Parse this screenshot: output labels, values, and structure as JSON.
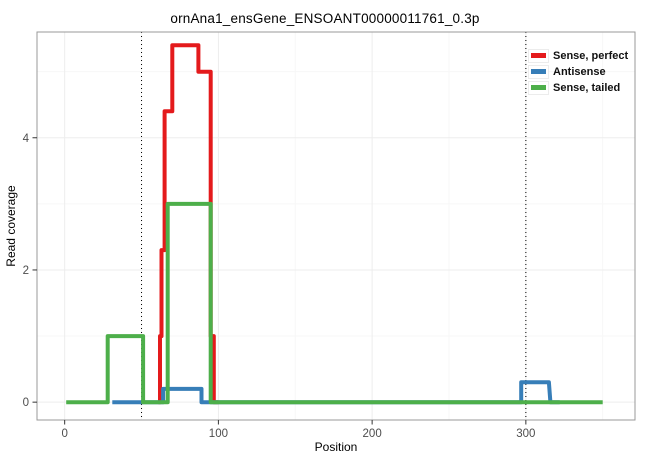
{
  "chart_data": {
    "type": "line",
    "subtype": "step-coverage",
    "title": "ornAna1_ensGene_ENSOANT00000011761_0.3p",
    "xlabel": "Position",
    "ylabel": "Read coverage",
    "xlim": [
      -18,
      371
    ],
    "ylim": [
      -0.27,
      5.6
    ],
    "x_ticks": [
      0,
      100,
      200,
      300
    ],
    "x_tick_labels": [
      "0",
      "100",
      "200",
      "300"
    ],
    "x_minor_gridlines": [
      50,
      150,
      250,
      350
    ],
    "y_ticks": [
      0,
      2,
      4
    ],
    "y_tick_labels": [
      "0",
      "2",
      "4"
    ],
    "y_minor_gridlines": [
      1,
      3,
      5
    ],
    "grid": true,
    "legend_position": "top-right-inside",
    "dotted_vlines": [
      50,
      300
    ],
    "panel_border_color": "#999999",
    "major_grid_color": "#ededed",
    "minor_grid_color": "#f7f7f7",
    "vline_color": "#000000",
    "series": [
      {
        "name": "Sense, perfect",
        "color": "#e41a1c",
        "points": [
          [
            61,
            0
          ],
          [
            62,
            0
          ],
          [
            62,
            1.0
          ],
          [
            63,
            1.0
          ],
          [
            63,
            2.3
          ],
          [
            65,
            2.3
          ],
          [
            65,
            4.4
          ],
          [
            70,
            4.4
          ],
          [
            70,
            5.4
          ],
          [
            87,
            5.4
          ],
          [
            87,
            5.0
          ],
          [
            95,
            5.0
          ],
          [
            95,
            1.0
          ],
          [
            97,
            1.0
          ],
          [
            97,
            0
          ],
          [
            100,
            0
          ]
        ]
      },
      {
        "name": "Antisense",
        "color": "#377eb8",
        "points": [
          [
            31,
            0
          ],
          [
            64,
            0
          ],
          [
            64,
            0.2
          ],
          [
            89,
            0.2
          ],
          [
            89,
            0
          ],
          [
            295,
            0
          ],
          [
            297,
            0
          ],
          [
            297,
            0.3
          ],
          [
            315,
            0.3
          ],
          [
            316,
            0
          ],
          [
            322,
            0
          ]
        ]
      },
      {
        "name": "Sense, tailed",
        "color": "#4daf4a",
        "points": [
          [
            1,
            0
          ],
          [
            28,
            0
          ],
          [
            28,
            1.0
          ],
          [
            51,
            1.0
          ],
          [
            51,
            0
          ],
          [
            67,
            0
          ],
          [
            67,
            3.0
          ],
          [
            95,
            3.0
          ],
          [
            95,
            0
          ],
          [
            350,
            0
          ]
        ]
      }
    ]
  }
}
